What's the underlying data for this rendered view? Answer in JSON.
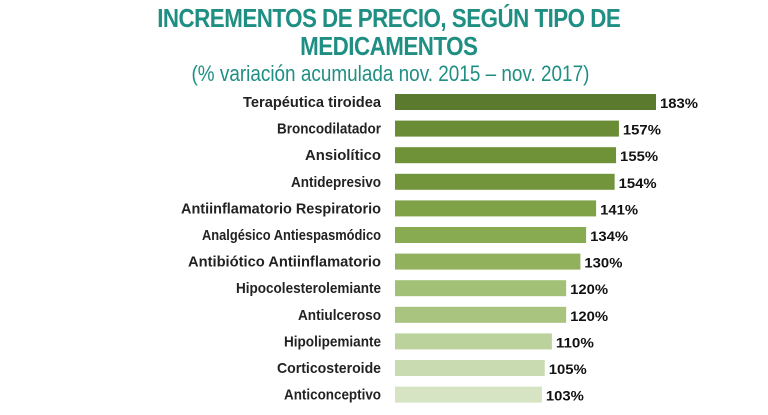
{
  "chart_data": {
    "type": "bar",
    "orientation": "horizontal",
    "title_line1": "INCREMENTOS DE PRECIO, SEGÚN TIPO DE",
    "title_line2": "MEDICAMENTOS",
    "subtitle": "(% variación acumulada nov. 2015 – nov. 2017)",
    "categories": [
      "Terapéutica tiroidea",
      "Broncodilatador",
      "Ansiolítico",
      "Antidepresivo",
      "Antiinflamatorio Respiratorio",
      "Analgésico Antiespasmódico",
      "Antibiótico Antiinflamatorio",
      "Hipocolesterolemiante",
      "Antiulceroso",
      "Hipolipemiante",
      "Corticosteroide",
      "Anticonceptivo"
    ],
    "values": [
      183,
      157,
      155,
      154,
      141,
      134,
      130,
      120,
      120,
      110,
      105,
      103
    ],
    "value_labels": [
      "183%",
      "157%",
      "155%",
      "154%",
      "141%",
      "134%",
      "130%",
      "120%",
      "120%",
      "110%",
      "105%",
      "103%"
    ],
    "colors": [
      "#5b7a2e",
      "#6a8c35",
      "#6f9239",
      "#72953c",
      "#7fa246",
      "#88aa51",
      "#92b15c",
      "#a3c077",
      "#a8c47e",
      "#bcd29c",
      "#c9dbb0",
      "#d6e4c4"
    ],
    "title_color": "#1f8f83",
    "xlim": [
      0,
      183
    ],
    "grid": false
  }
}
